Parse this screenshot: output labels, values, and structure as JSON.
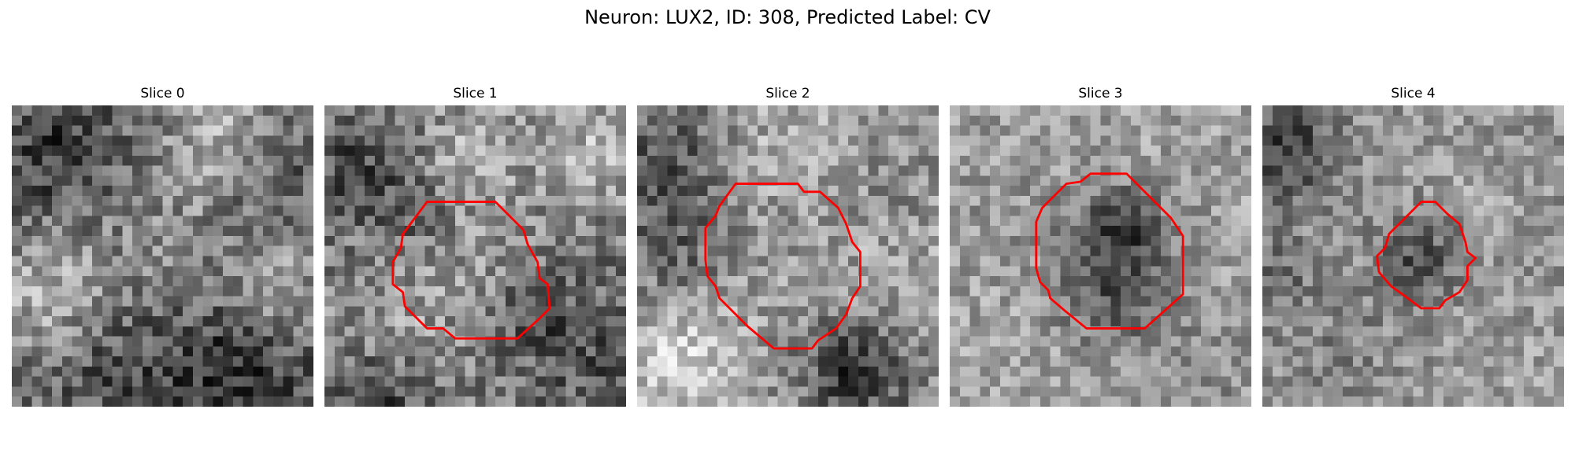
{
  "title": "Neuron: LUX2, ID: 308, Predicted Label: CV",
  "panels": [
    {
      "label": "Slice 0",
      "has_contour": false,
      "contour_color": "#ff0000"
    },
    {
      "label": "Slice 1",
      "has_contour": true,
      "contour_color": "#ff0000"
    },
    {
      "label": "Slice 2",
      "has_contour": true,
      "contour_color": "#ff0000"
    },
    {
      "label": "Slice 3",
      "has_contour": true,
      "contour_color": "#ff0000"
    },
    {
      "label": "Slice 4",
      "has_contour": true,
      "contour_color": "#ff0000"
    }
  ]
}
